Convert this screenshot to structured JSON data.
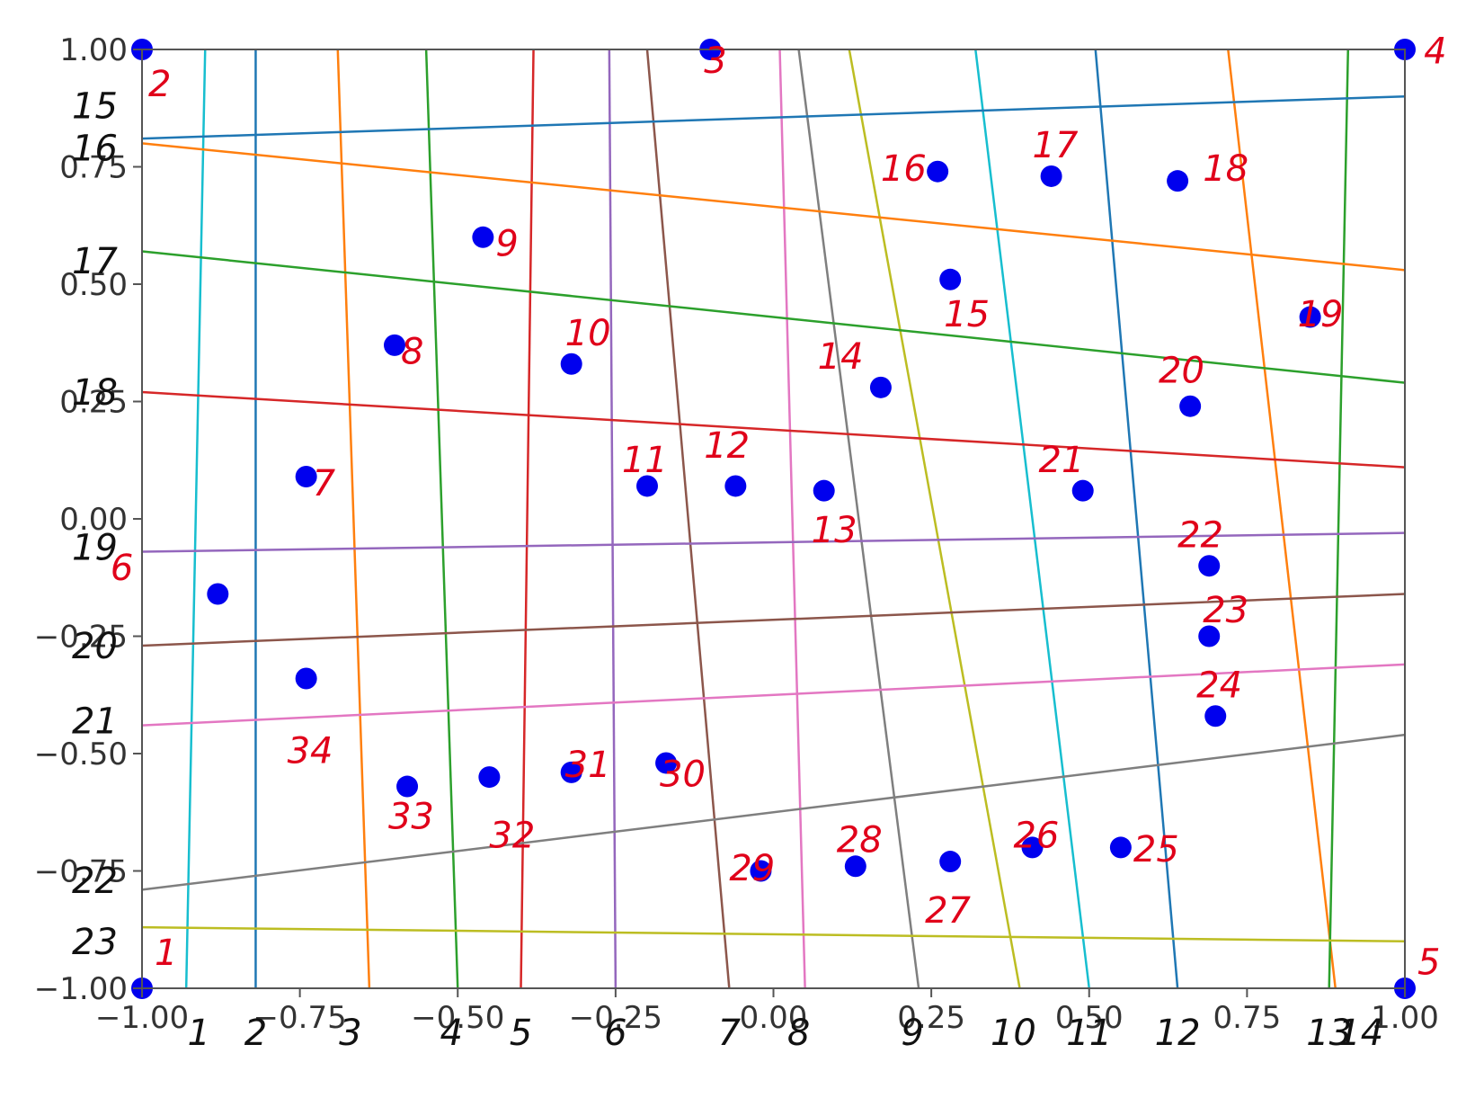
{
  "chart_data": {
    "type": "scatter",
    "xlim": [
      -1,
      1
    ],
    "ylim": [
      -1,
      1
    ],
    "grid": false,
    "x_ticks": [
      -1.0,
      -0.75,
      -0.5,
      -0.25,
      0.0,
      0.25,
      0.5,
      0.75,
      1.0
    ],
    "x_tick_labels": [
      "−1.00",
      "−0.75",
      "−0.50",
      "−0.25",
      "0.00",
      "0.25",
      "0.50",
      "0.75",
      "1.00"
    ],
    "y_ticks": [
      1.0,
      0.75,
      0.5,
      0.25,
      0.0,
      -0.25,
      -0.5,
      -0.75,
      -1.0
    ],
    "y_tick_labels": [
      "1.00",
      "0.75",
      "0.50",
      "0.25",
      "0.00",
      "−0.25",
      "−0.50",
      "−0.75",
      "−1.00"
    ],
    "point_color": "#0000ee",
    "points": [
      {
        "label": "1",
        "x": -1.0,
        "y": -1.0
      },
      {
        "label": "2",
        "x": -1.0,
        "y": 1.0
      },
      {
        "label": "3",
        "x": -0.1,
        "y": 1.0
      },
      {
        "label": "4",
        "x": 1.0,
        "y": 1.0
      },
      {
        "label": "5",
        "x": 1.0,
        "y": -1.0
      },
      {
        "label": "6",
        "x": -0.88,
        "y": -0.16
      },
      {
        "label": "7",
        "x": -0.74,
        "y": 0.09
      },
      {
        "label": "8",
        "x": -0.6,
        "y": 0.37
      },
      {
        "label": "9",
        "x": -0.46,
        "y": 0.6
      },
      {
        "label": "10",
        "x": -0.32,
        "y": 0.33
      },
      {
        "label": "11",
        "x": -0.2,
        "y": 0.07
      },
      {
        "label": "12",
        "x": -0.06,
        "y": 0.07
      },
      {
        "label": "13",
        "x": 0.08,
        "y": 0.06
      },
      {
        "label": "14",
        "x": 0.17,
        "y": 0.28
      },
      {
        "label": "15",
        "x": 0.28,
        "y": 0.51
      },
      {
        "label": "16",
        "x": 0.26,
        "y": 0.74
      },
      {
        "label": "17",
        "x": 0.44,
        "y": 0.73
      },
      {
        "label": "18",
        "x": 0.64,
        "y": 0.72
      },
      {
        "label": "19",
        "x": 0.85,
        "y": 0.43
      },
      {
        "label": "20",
        "x": 0.66,
        "y": 0.24
      },
      {
        "label": "21",
        "x": 0.49,
        "y": 0.06
      },
      {
        "label": "22",
        "x": 0.69,
        "y": -0.1
      },
      {
        "label": "23",
        "x": 0.69,
        "y": -0.25
      },
      {
        "label": "24",
        "x": 0.7,
        "y": -0.42
      },
      {
        "label": "25",
        "x": 0.55,
        "y": -0.7
      },
      {
        "label": "26",
        "x": 0.41,
        "y": -0.7
      },
      {
        "label": "27",
        "x": 0.28,
        "y": -0.73
      },
      {
        "label": "28",
        "x": 0.13,
        "y": -0.74
      },
      {
        "label": "29",
        "x": -0.02,
        "y": -0.75
      },
      {
        "label": "30",
        "x": -0.17,
        "y": -0.52
      },
      {
        "label": "31",
        "x": -0.32,
        "y": -0.54
      },
      {
        "label": "32",
        "x": -0.45,
        "y": -0.55
      },
      {
        "label": "33",
        "x": -0.58,
        "y": -0.57
      },
      {
        "label": "34",
        "x": -0.74,
        "y": -0.34
      }
    ],
    "vertical_lines": [
      {
        "x_bottom": -0.93,
        "x_top": -0.9,
        "color": "#17becf"
      },
      {
        "x_bottom": -0.82,
        "x_top": -0.82,
        "color": "#1f77b4"
      },
      {
        "x_bottom": -0.64,
        "x_top": -0.69,
        "color": "#ff7f0e"
      },
      {
        "x_bottom": -0.5,
        "x_top": -0.55,
        "color": "#2ca02c"
      },
      {
        "x_bottom": -0.4,
        "x_top": -0.38,
        "color": "#d62728"
      },
      {
        "x_bottom": -0.25,
        "x_top": -0.26,
        "color": "#9467bd"
      },
      {
        "x_bottom": -0.07,
        "x_top": -0.2,
        "color": "#8c564b"
      },
      {
        "x_bottom": 0.05,
        "x_top": 0.01,
        "color": "#e377c2"
      },
      {
        "x_bottom": 0.23,
        "x_top": 0.04,
        "color": "#7f7f7f"
      },
      {
        "x_bottom": 0.39,
        "x_top": 0.12,
        "color": "#bcbd22"
      },
      {
        "x_bottom": 0.5,
        "x_top": 0.32,
        "color": "#17becf"
      },
      {
        "x_bottom": 0.64,
        "x_top": 0.51,
        "color": "#1f77b4"
      },
      {
        "x_bottom": 0.89,
        "x_top": 0.72,
        "color": "#ff7f0e"
      },
      {
        "x_bottom": 0.88,
        "x_top": 0.91,
        "color": "#2ca02c"
      }
    ],
    "horizontal_lines": [
      {
        "y_left": 0.81,
        "y_right": 0.9,
        "color": "#1f77b4"
      },
      {
        "y_left": 0.8,
        "y_right": 0.53,
        "color": "#ff7f0e"
      },
      {
        "y_left": 0.57,
        "y_right": 0.29,
        "color": "#2ca02c"
      },
      {
        "y_left": 0.27,
        "y_right": 0.11,
        "color": "#d62728"
      },
      {
        "y_left": -0.07,
        "y_right": -0.03,
        "color": "#9467bd"
      },
      {
        "y_left": -0.27,
        "y_right": -0.16,
        "color": "#8c564b"
      },
      {
        "y_left": -0.44,
        "y_right": -0.31,
        "color": "#e377c2"
      },
      {
        "y_left": -0.79,
        "y_right": -0.46,
        "color": "#7f7f7f"
      },
      {
        "y_left": -0.87,
        "y_right": -0.9,
        "color": "#bcbd22"
      }
    ],
    "annotations_red": [
      {
        "text": "1",
        "x": -0.98,
        "y": -0.95
      },
      {
        "text": "2",
        "x": -0.99,
        "y": 0.9
      },
      {
        "text": "3",
        "x": -0.11,
        "y": 0.95
      },
      {
        "text": "4",
        "x": 1.03,
        "y": 0.97
      },
      {
        "text": "5",
        "x": 1.02,
        "y": -0.97
      },
      {
        "text": "6",
        "x": -1.05,
        "y": -0.13
      },
      {
        "text": "7",
        "x": -0.73,
        "y": 0.05
      },
      {
        "text": "8",
        "x": -0.59,
        "y": 0.33
      },
      {
        "text": "9",
        "x": -0.44,
        "y": 0.56
      },
      {
        "text": "10",
        "x": -0.33,
        "y": 0.37
      },
      {
        "text": "11",
        "x": -0.24,
        "y": 0.1
      },
      {
        "text": "12",
        "x": -0.11,
        "y": 0.13
      },
      {
        "text": "13",
        "x": 0.06,
        "y": -0.05
      },
      {
        "text": "14",
        "x": 0.07,
        "y": 0.32
      },
      {
        "text": "15",
        "x": 0.27,
        "y": 0.41
      },
      {
        "text": "16",
        "x": 0.17,
        "y": 0.72
      },
      {
        "text": "17",
        "x": 0.41,
        "y": 0.77
      },
      {
        "text": "18",
        "x": 0.68,
        "y": 0.72
      },
      {
        "text": "19",
        "x": 0.83,
        "y": 0.41
      },
      {
        "text": "20",
        "x": 0.61,
        "y": 0.29
      },
      {
        "text": "21",
        "x": 0.42,
        "y": 0.1
      },
      {
        "text": "22",
        "x": 0.64,
        "y": -0.06
      },
      {
        "text": "23",
        "x": 0.68,
        "y": -0.22
      },
      {
        "text": "24",
        "x": 0.67,
        "y": -0.38
      },
      {
        "text": "25",
        "x": 0.57,
        "y": -0.73
      },
      {
        "text": "26",
        "x": 0.38,
        "y": -0.7
      },
      {
        "text": "27",
        "x": 0.24,
        "y": -0.86
      },
      {
        "text": "28",
        "x": 0.1,
        "y": -0.71
      },
      {
        "text": "29",
        "x": -0.07,
        "y": -0.77
      },
      {
        "text": "30",
        "x": -0.18,
        "y": -0.57
      },
      {
        "text": "31",
        "x": -0.33,
        "y": -0.55
      },
      {
        "text": "32",
        "x": -0.45,
        "y": -0.7
      },
      {
        "text": "33",
        "x": -0.61,
        "y": -0.66
      },
      {
        "text": "34",
        "x": -0.77,
        "y": -0.52
      }
    ],
    "annotations_black_left": [
      {
        "text": "15",
        "y": 0.88
      },
      {
        "text": "16",
        "y": 0.79
      },
      {
        "text": "17",
        "y": 0.55
      },
      {
        "text": "18",
        "y": 0.27
      },
      {
        "text": "19",
        "y": -0.06
      },
      {
        "text": "20",
        "y": -0.27
      },
      {
        "text": "21",
        "y": -0.43
      },
      {
        "text": "22",
        "y": -0.77
      },
      {
        "text": "23",
        "y": -0.9
      }
    ],
    "annotations_black_bottom": [
      {
        "text": "1",
        "x": -0.91
      },
      {
        "text": "2",
        "x": -0.82
      },
      {
        "text": "3",
        "x": -0.67
      },
      {
        "text": "4",
        "x": -0.51
      },
      {
        "text": "5",
        "x": -0.4
      },
      {
        "text": "6",
        "x": -0.25
      },
      {
        "text": "7",
        "x": -0.07
      },
      {
        "text": "8",
        "x": 0.04
      },
      {
        "text": "9",
        "x": 0.22
      },
      {
        "text": "10",
        "x": 0.38
      },
      {
        "text": "11",
        "x": 0.5
      },
      {
        "text": "12",
        "x": 0.64
      },
      {
        "text": "13",
        "x": 0.88
      },
      {
        "text": "14",
        "x": 0.93
      }
    ]
  }
}
